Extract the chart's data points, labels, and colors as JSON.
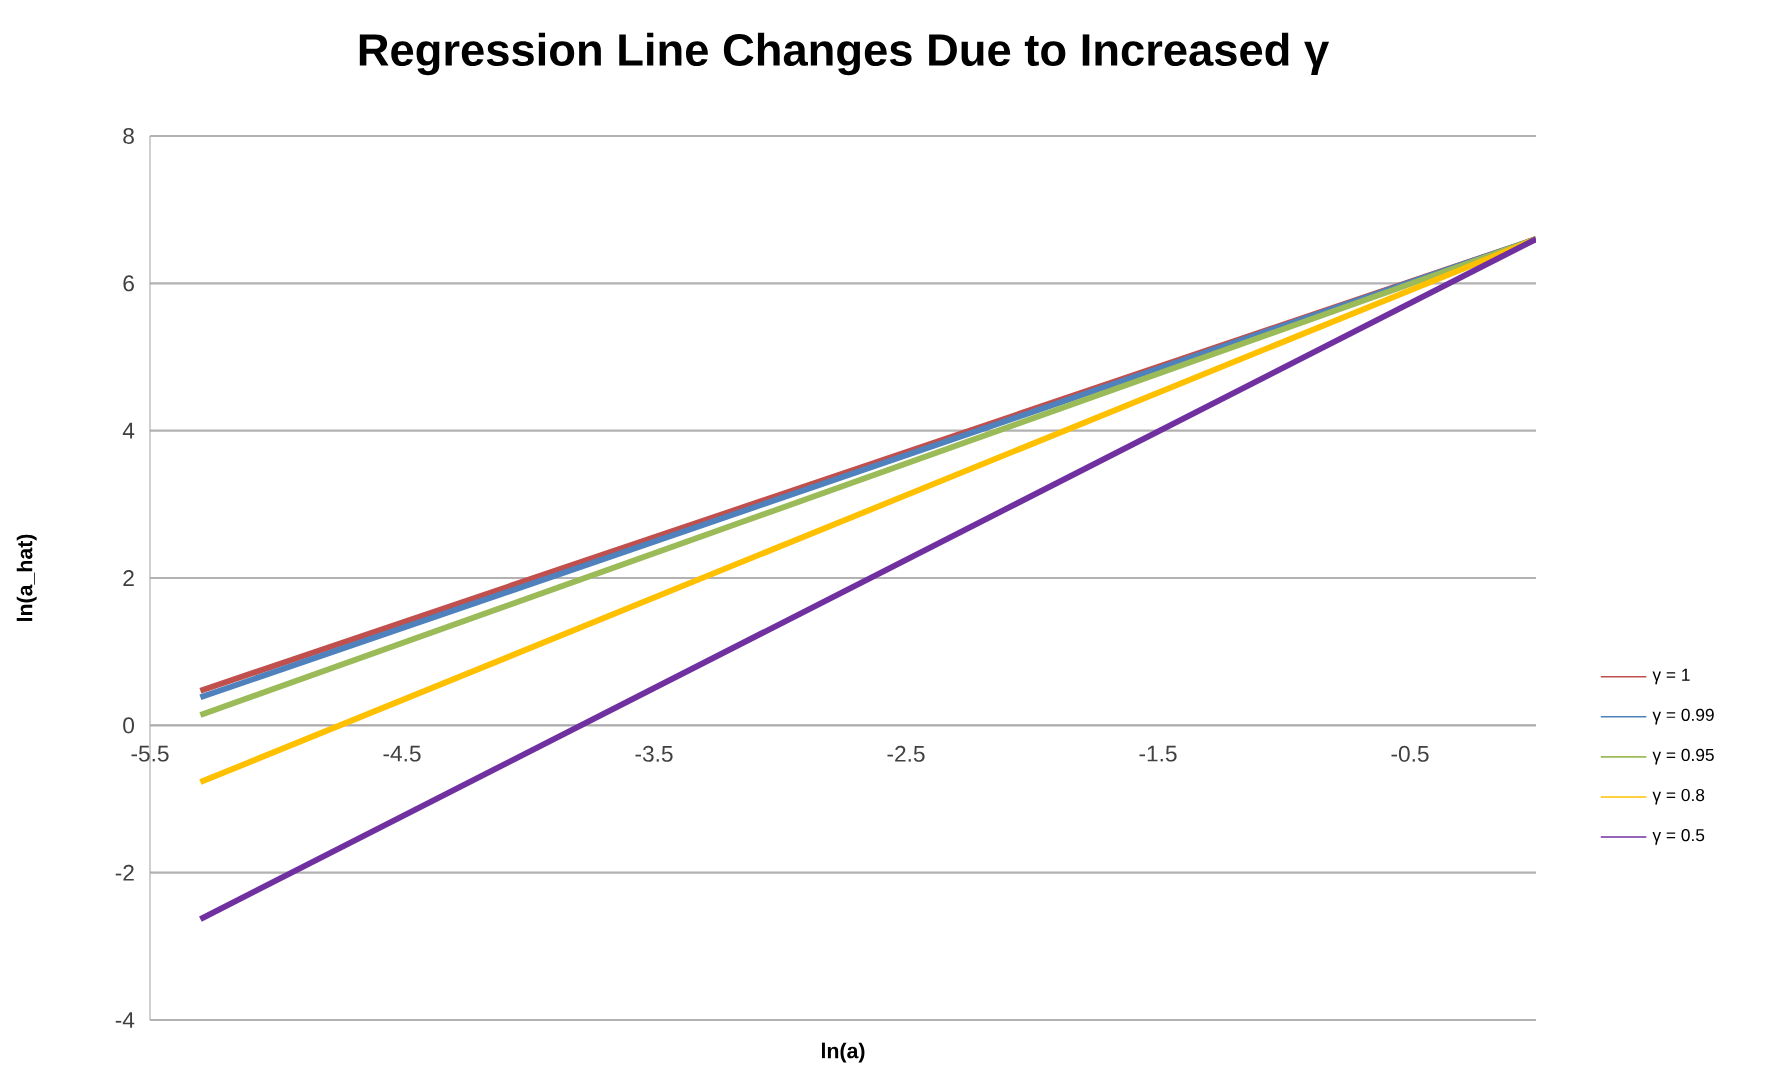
{
  "chart_data": {
    "type": "line",
    "title": "Regression Line Changes Due to Increased γ",
    "xlabel": "ln(a)",
    "ylabel": "ln(a_hat)",
    "x": [
      -5.3,
      0
    ],
    "series": [
      {
        "name": "γ = 1",
        "color": "#c0504d",
        "values": [
          0.47,
          6.6
        ]
      },
      {
        "name": "γ = 0.99",
        "color": "#4f81bd",
        "values": [
          0.38,
          6.6
        ]
      },
      {
        "name": "γ = 0.95",
        "color": "#9bbb59",
        "values": [
          0.14,
          6.6
        ]
      },
      {
        "name": "γ = 0.8",
        "color": "#ffc000",
        "values": [
          -0.77,
          6.6
        ]
      },
      {
        "name": "γ = 0.5",
        "color": "#7030a0",
        "values": [
          -2.63,
          6.6
        ]
      }
    ],
    "xlim": [
      -5.5,
      0
    ],
    "ylim": [
      -4,
      8
    ],
    "xticks": [
      -5.5,
      -4.5,
      -3.5,
      -2.5,
      -1.5,
      -0.5
    ],
    "yticks": [
      -4,
      -2,
      0,
      2,
      4,
      6,
      8
    ],
    "grid": "y",
    "legend": "right",
    "marker": "none",
    "line_style": "solid"
  }
}
